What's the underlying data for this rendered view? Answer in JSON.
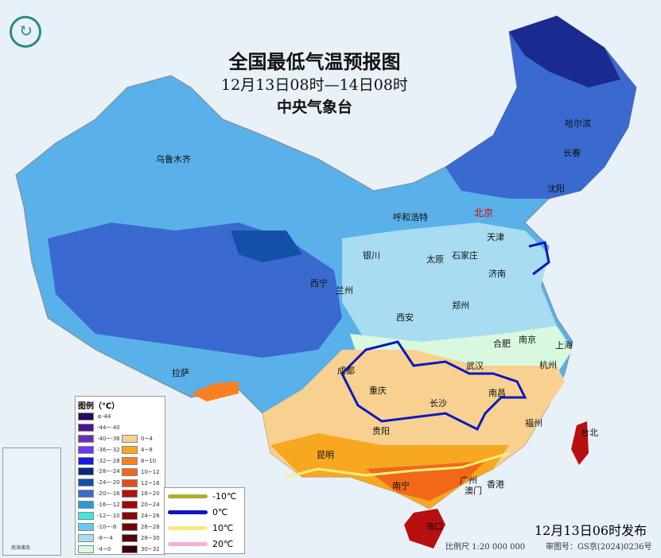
{
  "header": {
    "title": "全国最低气温预报图",
    "period": "12月13日08时—14日08时",
    "agency": "中央气象台",
    "logo_icon": "cma-logo-icon"
  },
  "cities": [
    {
      "name": "乌鲁木齐"
    },
    {
      "name": "哈尔滨"
    },
    {
      "name": "长春"
    },
    {
      "name": "沈阳"
    },
    {
      "name": "呼和浩特"
    },
    {
      "name": "北京",
      "capital": true
    },
    {
      "name": "天津"
    },
    {
      "name": "银川"
    },
    {
      "name": "太原"
    },
    {
      "name": "石家庄"
    },
    {
      "name": "济南"
    },
    {
      "name": "西宁"
    },
    {
      "name": "兰州"
    },
    {
      "name": "郑州"
    },
    {
      "name": "西安"
    },
    {
      "name": "合肥"
    },
    {
      "name": "南京"
    },
    {
      "name": "上海"
    },
    {
      "name": "拉萨"
    },
    {
      "name": "成都"
    },
    {
      "name": "武汉"
    },
    {
      "name": "杭州"
    },
    {
      "name": "重庆"
    },
    {
      "name": "南昌"
    },
    {
      "name": "长沙"
    },
    {
      "name": "福州"
    },
    {
      "name": "台北"
    },
    {
      "name": "贵阳"
    },
    {
      "name": "昆明"
    },
    {
      "name": "南宁"
    },
    {
      "name": "广州"
    },
    {
      "name": "澳门"
    },
    {
      "name": "香港"
    },
    {
      "name": "海口"
    }
  ],
  "legend": {
    "title": "图例（℃）",
    "cold": [
      {
        "label": "≤-44",
        "color": "#2a0a5e"
      },
      {
        "label": "-44~-40",
        "color": "#4a1490"
      },
      {
        "label": "-40~-36",
        "color": "#6a2ec0"
      },
      {
        "label": "-36~-32",
        "color": "#6a3af0"
      },
      {
        "label": "-32~-28",
        "color": "#1a1ae0"
      },
      {
        "label": "-28~-24",
        "color": "#0a2a78"
      },
      {
        "label": "-24~-20",
        "color": "#1450a8"
      },
      {
        "label": "-20~-16",
        "color": "#3a6ad0"
      },
      {
        "label": "-16~-12",
        "color": "#2a9ad8"
      },
      {
        "label": "-12~-10",
        "color": "#40e8e0"
      },
      {
        "label": "-10~-8",
        "color": "#6ac8f0"
      },
      {
        "label": "-8~-4",
        "color": "#a8dcf0"
      },
      {
        "label": "-4~0",
        "color": "#d8f8e0"
      }
    ],
    "warm": [
      {
        "label": "0~4",
        "color": "#f8d090"
      },
      {
        "label": "4~8",
        "color": "#f8a820"
      },
      {
        "label": "8~10",
        "color": "#f88020"
      },
      {
        "label": "10~12",
        "color": "#f06818"
      },
      {
        "label": "12~16",
        "color": "#e05018"
      },
      {
        "label": "16~20",
        "color": "#b81010"
      },
      {
        "label": "20~24",
        "color": "#a00808"
      },
      {
        "label": "24~26",
        "color": "#880808"
      },
      {
        "label": "26~28",
        "color": "#700408"
      },
      {
        "label": "28~30",
        "color": "#580408"
      },
      {
        "label": "30~32",
        "color": "#380004"
      }
    ],
    "isotherms": [
      {
        "label": "-10℃",
        "color": "#a8b030"
      },
      {
        "label": "0℃",
        "color": "#0a18c0"
      },
      {
        "label": "10℃",
        "color": "#f0f080"
      },
      {
        "label": "20℃",
        "color": "#f8b0d8"
      }
    ]
  },
  "footer": {
    "issued": "12月13日06时发布",
    "scale": "比例尺 1:20 000 000",
    "review_no": "审图号：GS京(2024)0236号"
  },
  "inset": {
    "label": "南海诸岛"
  }
}
